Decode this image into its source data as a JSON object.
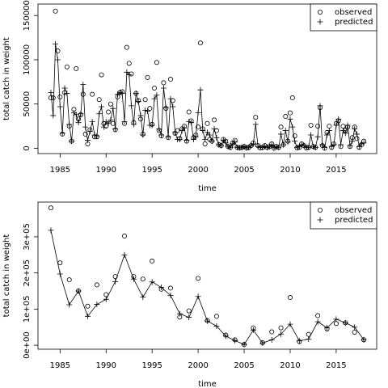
{
  "chart_data": [
    {
      "type": "line",
      "xlabel": "time",
      "ylabel": "total catch in weight",
      "xlim": [
        1982.6,
        2019.4
      ],
      "ylim": [
        -6000,
        163000
      ],
      "xticks": [
        1985,
        1990,
        1995,
        2000,
        2005,
        2010,
        2015
      ],
      "yticks": [
        0,
        50000,
        100000,
        150000
      ],
      "legend": "top-right",
      "x": [
        1984,
        1984.25,
        1984.5,
        1984.75,
        1985,
        1985.25,
        1985.5,
        1985.75,
        1986,
        1986.25,
        1986.5,
        1986.75,
        1987,
        1987.25,
        1987.5,
        1987.75,
        1988,
        1988.25,
        1988.5,
        1988.75,
        1989,
        1989.25,
        1989.5,
        1989.75,
        1990,
        1990.25,
        1990.5,
        1990.75,
        1991,
        1991.25,
        1991.5,
        1991.75,
        1992,
        1992.25,
        1992.5,
        1992.75,
        1993,
        1993.25,
        1993.5,
        1993.75,
        1994,
        1994.25,
        1994.5,
        1994.75,
        1995,
        1995.25,
        1995.5,
        1995.75,
        1996,
        1996.25,
        1996.5,
        1996.75,
        1997,
        1997.25,
        1997.5,
        1997.75,
        1998,
        1998.25,
        1998.5,
        1998.75,
        1999,
        1999.25,
        1999.5,
        1999.75,
        2000,
        2000.25,
        2000.5,
        2000.75,
        2001,
        2001.25,
        2001.5,
        2001.75,
        2002,
        2002.25,
        2002.5,
        2002.75,
        2003,
        2003.25,
        2003.5,
        2003.75,
        2004,
        2004.25,
        2004.5,
        2004.75,
        2005,
        2005.25,
        2005.5,
        2005.75,
        2006,
        2006.25,
        2006.5,
        2006.75,
        2007,
        2007.25,
        2007.5,
        2007.75,
        2008,
        2008.25,
        2008.5,
        2008.75,
        2009,
        2009.25,
        2009.5,
        2009.75,
        2010,
        2010.25,
        2010.5,
        2010.75,
        2011,
        2011.25,
        2011.5,
        2011.75,
        2012,
        2012.25,
        2012.5,
        2012.75,
        2013,
        2013.25,
        2013.5,
        2013.75,
        2014,
        2014.25,
        2014.5,
        2014.75,
        2015,
        2015.25,
        2015.5,
        2015.75,
        2016,
        2016.25,
        2016.5,
        2016.75,
        2017,
        2017.25,
        2017.5,
        2017.75,
        2018
      ],
      "series": [
        {
          "name": "observed",
          "color": "#000000",
          "marker": "circle",
          "line": false,
          "values": [
            57000,
            57000,
            155000,
            110000,
            58000,
            16000,
            63000,
            92000,
            25000,
            8000,
            44000,
            90000,
            33000,
            38000,
            61000,
            16000,
            5000,
            21000,
            61000,
            13000,
            13000,
            55000,
            83000,
            28000,
            25000,
            41000,
            50000,
            28000,
            21000,
            58000,
            63000,
            64000,
            28000,
            114000,
            96000,
            84000,
            29000,
            62000,
            54000,
            33000,
            16000,
            55000,
            80000,
            45000,
            27000,
            68000,
            97000,
            20000,
            14000,
            74000,
            45000,
            12000,
            78000,
            54000,
            17000,
            20000,
            11000,
            22000,
            25000,
            8000,
            41000,
            31000,
            12000,
            15000,
            24000,
            119000,
            22000,
            5000,
            28000,
            10000,
            8000,
            32000,
            20000,
            4000,
            3000,
            10000,
            8000,
            2000,
            1000,
            6000,
            9000,
            1000,
            500,
            1000,
            2000,
            500,
            1000,
            3000,
            6000,
            35000,
            3000,
            500,
            1000,
            3000,
            1000,
            2000,
            5000,
            0,
            2000,
            1000,
            24000,
            4000,
            36000,
            8000,
            40000,
            57000,
            14000,
            500,
            1000,
            5000,
            3000,
            500,
            1000,
            26000,
            2000,
            1000,
            25000,
            46000,
            3000,
            0,
            18000,
            25000,
            1000,
            5000,
            28000,
            31000,
            2000,
            25000,
            20000,
            24000,
            2000,
            12000,
            24000,
            11000,
            1000,
            4000,
            8000
          ]
        },
        {
          "name": "predicted",
          "color": "#000000",
          "marker": "plus",
          "line": true,
          "values": [
            63000,
            37000,
            118000,
            100000,
            47000,
            17000,
            68000,
            62000,
            27000,
            8000,
            40000,
            38000,
            29000,
            39000,
            72000,
            24000,
            9000,
            19000,
            30000,
            15000,
            14000,
            39000,
            47000,
            24000,
            30000,
            28000,
            32000,
            45000,
            22000,
            61000,
            63000,
            62000,
            30000,
            86000,
            83000,
            48000,
            27000,
            62000,
            53000,
            37000,
            15000,
            43000,
            42000,
            26000,
            26000,
            56000,
            60000,
            22000,
            15000,
            68000,
            46000,
            13000,
            56000,
            47000,
            18000,
            10000,
            10000,
            20000,
            23000,
            9000,
            30000,
            29000,
            10000,
            13000,
            40000,
            66000,
            20000,
            10000,
            18000,
            15000,
            8000,
            22000,
            12000,
            4000,
            3000,
            9000,
            6000,
            2000,
            1000,
            5000,
            7000,
            1000,
            500,
            1000,
            2000,
            500,
            1000,
            3000,
            5000,
            27000,
            2000,
            1000,
            1000,
            2000,
            1000,
            1500,
            4000,
            500,
            2000,
            1000,
            16000,
            4000,
            20000,
            7000,
            33000,
            24000,
            8000,
            1000,
            2000,
            4000,
            3000,
            1000,
            1000,
            15000,
            2000,
            1000,
            13000,
            48000,
            4000,
            1000,
            15000,
            20000,
            2000,
            4000,
            26000,
            33000,
            4000,
            20000,
            17000,
            26000,
            3000,
            8000,
            22000,
            16000,
            2000,
            5000,
            6000
          ]
        }
      ]
    },
    {
      "type": "line",
      "xlabel": "time",
      "ylabel": "total catch in weight",
      "xlim": [
        1982.6,
        2019.4
      ],
      "ylim": [
        -11000,
        396000
      ],
      "xticks": [
        1985,
        1990,
        1995,
        2000,
        2005,
        2010,
        2015
      ],
      "yticks": [
        {
          "value": 0,
          "label": "0e+00"
        },
        {
          "value": 100000,
          "label": "1e+05"
        },
        {
          "value": 200000,
          "label": "2e+05"
        },
        {
          "value": 300000,
          "label": "3e+05"
        }
      ],
      "legend": "top-right",
      "x": [
        1984,
        1985,
        1986,
        1987,
        1988,
        1989,
        1990,
        1991,
        1992,
        1993,
        1994,
        1995,
        1996,
        1997,
        1998,
        1999,
        2000,
        2001,
        2002,
        2003,
        2004,
        2005,
        2006,
        2007,
        2008,
        2009,
        2010,
        2011,
        2012,
        2013,
        2014,
        2015,
        2016,
        2017,
        2018
      ],
      "series": [
        {
          "name": "observed",
          "color": "#000000",
          "marker": "circle",
          "line": false,
          "values": [
            380000,
            228000,
            181000,
            150000,
            108000,
            167000,
            140000,
            190000,
            302000,
            190000,
            183000,
            233000,
            155000,
            158000,
            78000,
            95000,
            185000,
            68000,
            80000,
            28000,
            15000,
            2000,
            48000,
            7000,
            37000,
            48000,
            132000,
            10000,
            30000,
            82000,
            45000,
            60000,
            62000,
            36000,
            15000
          ]
        },
        {
          "name": "predicted",
          "color": "#000000",
          "marker": "plus",
          "line": true,
          "values": [
            318000,
            197000,
            112000,
            150000,
            80000,
            113000,
            127000,
            176000,
            250000,
            183000,
            133000,
            175000,
            160000,
            138000,
            87000,
            77000,
            135000,
            67000,
            53000,
            25000,
            13000,
            2000,
            42000,
            6000,
            15000,
            31000,
            58000,
            12000,
            17000,
            65000,
            48000,
            72000,
            62000,
            50000,
            15000
          ]
        }
      ]
    }
  ]
}
